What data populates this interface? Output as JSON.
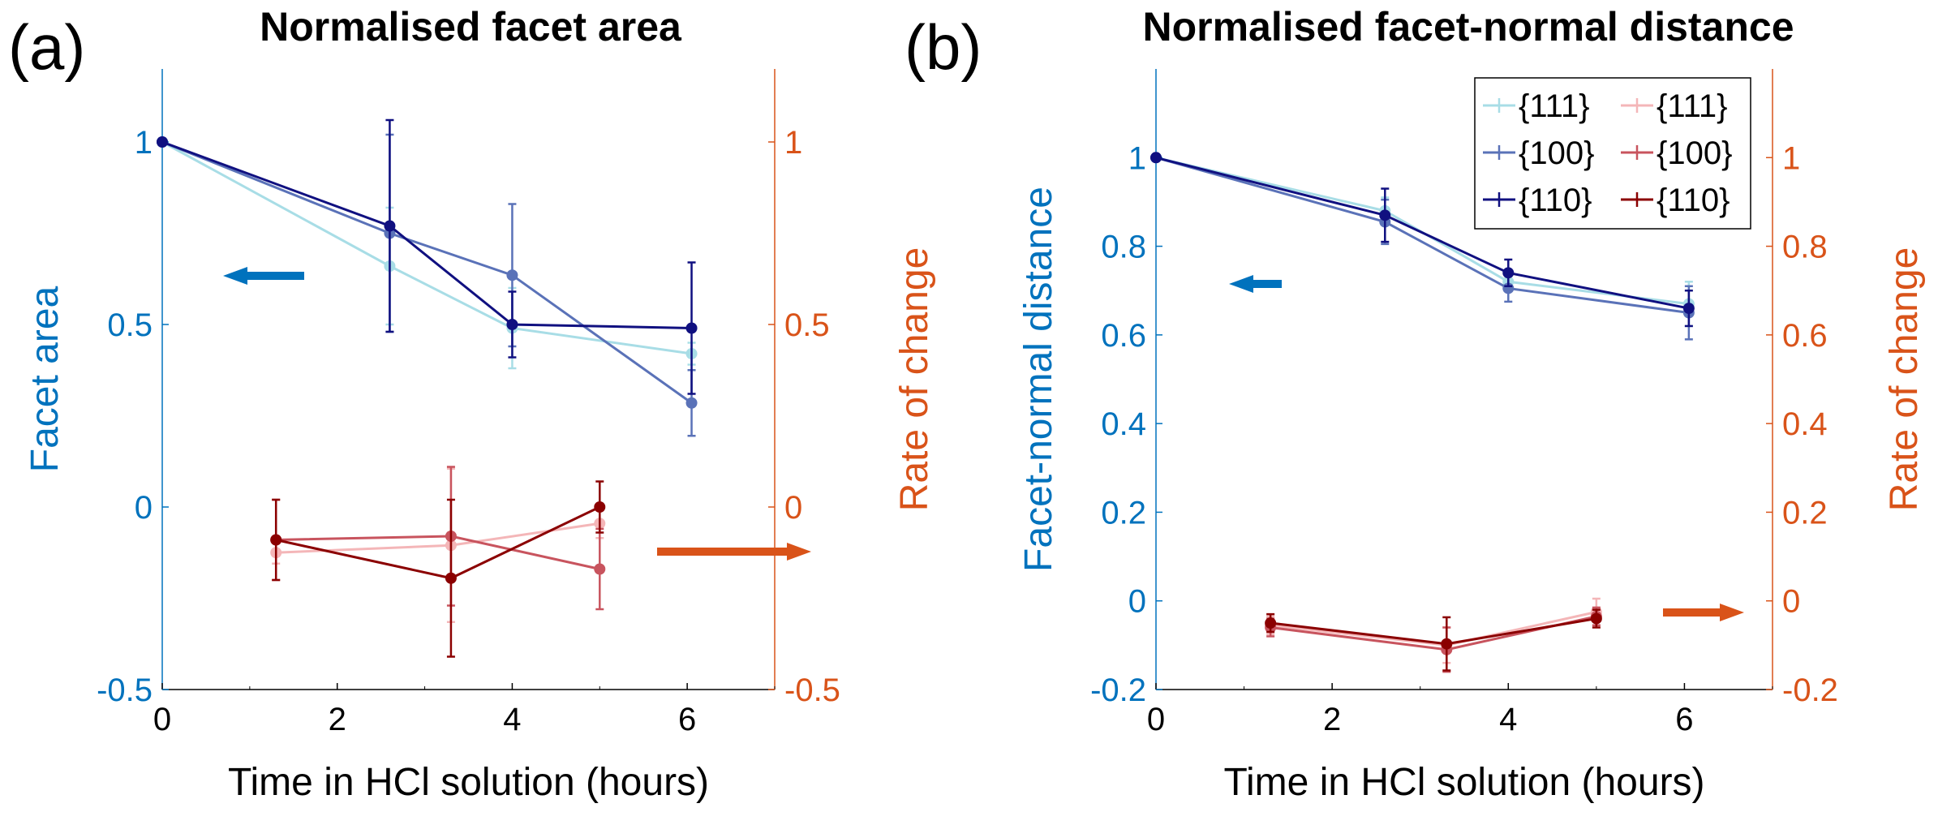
{
  "colors": {
    "left_axis": "#0072BD",
    "right_axis": "#D95319",
    "black": "#000000",
    "c111_blue": "#A8DDE6",
    "c100_blue": "#5A72B8",
    "c110_blue": "#101080",
    "c111_red": "#F4B6B8",
    "c100_red": "#C8545E",
    "c110_red": "#8B0000"
  },
  "legend_entries": [
    "{111}",
    "{100}",
    "{110}",
    "{111}",
    "{100}",
    "{110}"
  ],
  "chart_data": [
    {
      "type": "line",
      "panel_label": "(a)",
      "title": "Normalised facet area",
      "xlabel": "Time in HCl solution (hours)",
      "ylabel_left": "Facet area",
      "ylabel_right": "Rate of change",
      "xlim": [
        0,
        7
      ],
      "ylim_left": [
        -0.5,
        1.2
      ],
      "ylim_right": [
        -0.5,
        1.2
      ],
      "xticks": [
        "0",
        "2",
        "4",
        "6"
      ],
      "yticks_left": [
        "-0.5",
        "0",
        "0.5",
        "1"
      ],
      "yticks_right": [
        "-0.5",
        "0",
        "0.5",
        "1"
      ],
      "series_left": [
        {
          "name": "{111}",
          "x": [
            0,
            2.6,
            4.0,
            6.05
          ],
          "y": [
            1.0,
            0.66,
            0.49,
            0.42
          ],
          "err": [
            0,
            0.16,
            0.11,
            0.03
          ]
        },
        {
          "name": "{100}",
          "x": [
            0,
            2.6,
            4.0,
            6.05
          ],
          "y": [
            1.0,
            0.75,
            0.635,
            0.285
          ],
          "err": [
            0,
            0.27,
            0.195,
            0.09
          ]
        },
        {
          "name": "{110}",
          "x": [
            0,
            2.6,
            4.0,
            6.05
          ],
          "y": [
            1.0,
            0.77,
            0.5,
            0.49
          ],
          "err": [
            0,
            0.29,
            0.09,
            0.18
          ]
        }
      ],
      "series_right": [
        {
          "name": "{111}",
          "x": [
            1.3,
            3.3,
            5.0
          ],
          "y": [
            -0.125,
            -0.105,
            -0.045
          ],
          "err": [
            0.03,
            0.21,
            0.04
          ]
        },
        {
          "name": "{100}",
          "x": [
            1.3,
            3.3,
            5.0
          ],
          "y": [
            -0.09,
            -0.08,
            -0.17
          ],
          "err": [
            0.11,
            0.19,
            0.11
          ]
        },
        {
          "name": "{110}",
          "x": [
            1.3,
            3.3,
            5.0
          ],
          "y": [
            -0.09,
            -0.195,
            0.0
          ],
          "err": [
            0.11,
            0.215,
            0.07
          ]
        }
      ]
    },
    {
      "type": "line",
      "panel_label": "(b)",
      "title": "Normalised facet-normal distance",
      "xlabel": "Time in HCl solution (hours)",
      "ylabel_left": "Facet-normal distance",
      "ylabel_right": "Rate of change",
      "xlim": [
        0,
        7
      ],
      "ylim_left": [
        -0.2,
        1.2
      ],
      "ylim_right": [
        -0.2,
        1.2
      ],
      "xticks": [
        "0",
        "2",
        "4",
        "6"
      ],
      "yticks_left": [
        "-0.2",
        "0",
        "0.2",
        "0.4",
        "0.6",
        "0.8",
        "1"
      ],
      "yticks_right": [
        "-0.2",
        "0",
        "0.2",
        "0.4",
        "0.6",
        "0.8",
        "1"
      ],
      "legend_position": "top-right",
      "series_left": [
        {
          "name": "{111}",
          "x": [
            0,
            2.6,
            4.0,
            6.05
          ],
          "y": [
            1.0,
            0.88,
            0.72,
            0.67
          ],
          "err": [
            0,
            0.03,
            0.02,
            0.05
          ]
        },
        {
          "name": "{100}",
          "x": [
            0,
            2.6,
            4.0,
            6.05
          ],
          "y": [
            1.0,
            0.855,
            0.705,
            0.65
          ],
          "err": [
            0,
            0.05,
            0.03,
            0.06
          ]
        },
        {
          "name": "{110}",
          "x": [
            0,
            2.6,
            4.0,
            6.05
          ],
          "y": [
            1.0,
            0.87,
            0.74,
            0.66
          ],
          "err": [
            0,
            0.06,
            0.03,
            0.04
          ]
        }
      ],
      "series_right": [
        {
          "name": "{111}",
          "x": [
            1.3,
            3.3,
            5.0
          ],
          "y": [
            -0.055,
            -0.1,
            -0.025
          ],
          "err": [
            0.02,
            0.04,
            0.03
          ]
        },
        {
          "name": "{100}",
          "x": [
            1.3,
            3.3,
            5.0
          ],
          "y": [
            -0.06,
            -0.11,
            -0.035
          ],
          "err": [
            0.02,
            0.05,
            0.02
          ]
        },
        {
          "name": "{110}",
          "x": [
            1.3,
            3.3,
            5.0
          ],
          "y": [
            -0.05,
            -0.097,
            -0.04
          ],
          "err": [
            0.02,
            0.06,
            0.02
          ]
        }
      ]
    }
  ]
}
